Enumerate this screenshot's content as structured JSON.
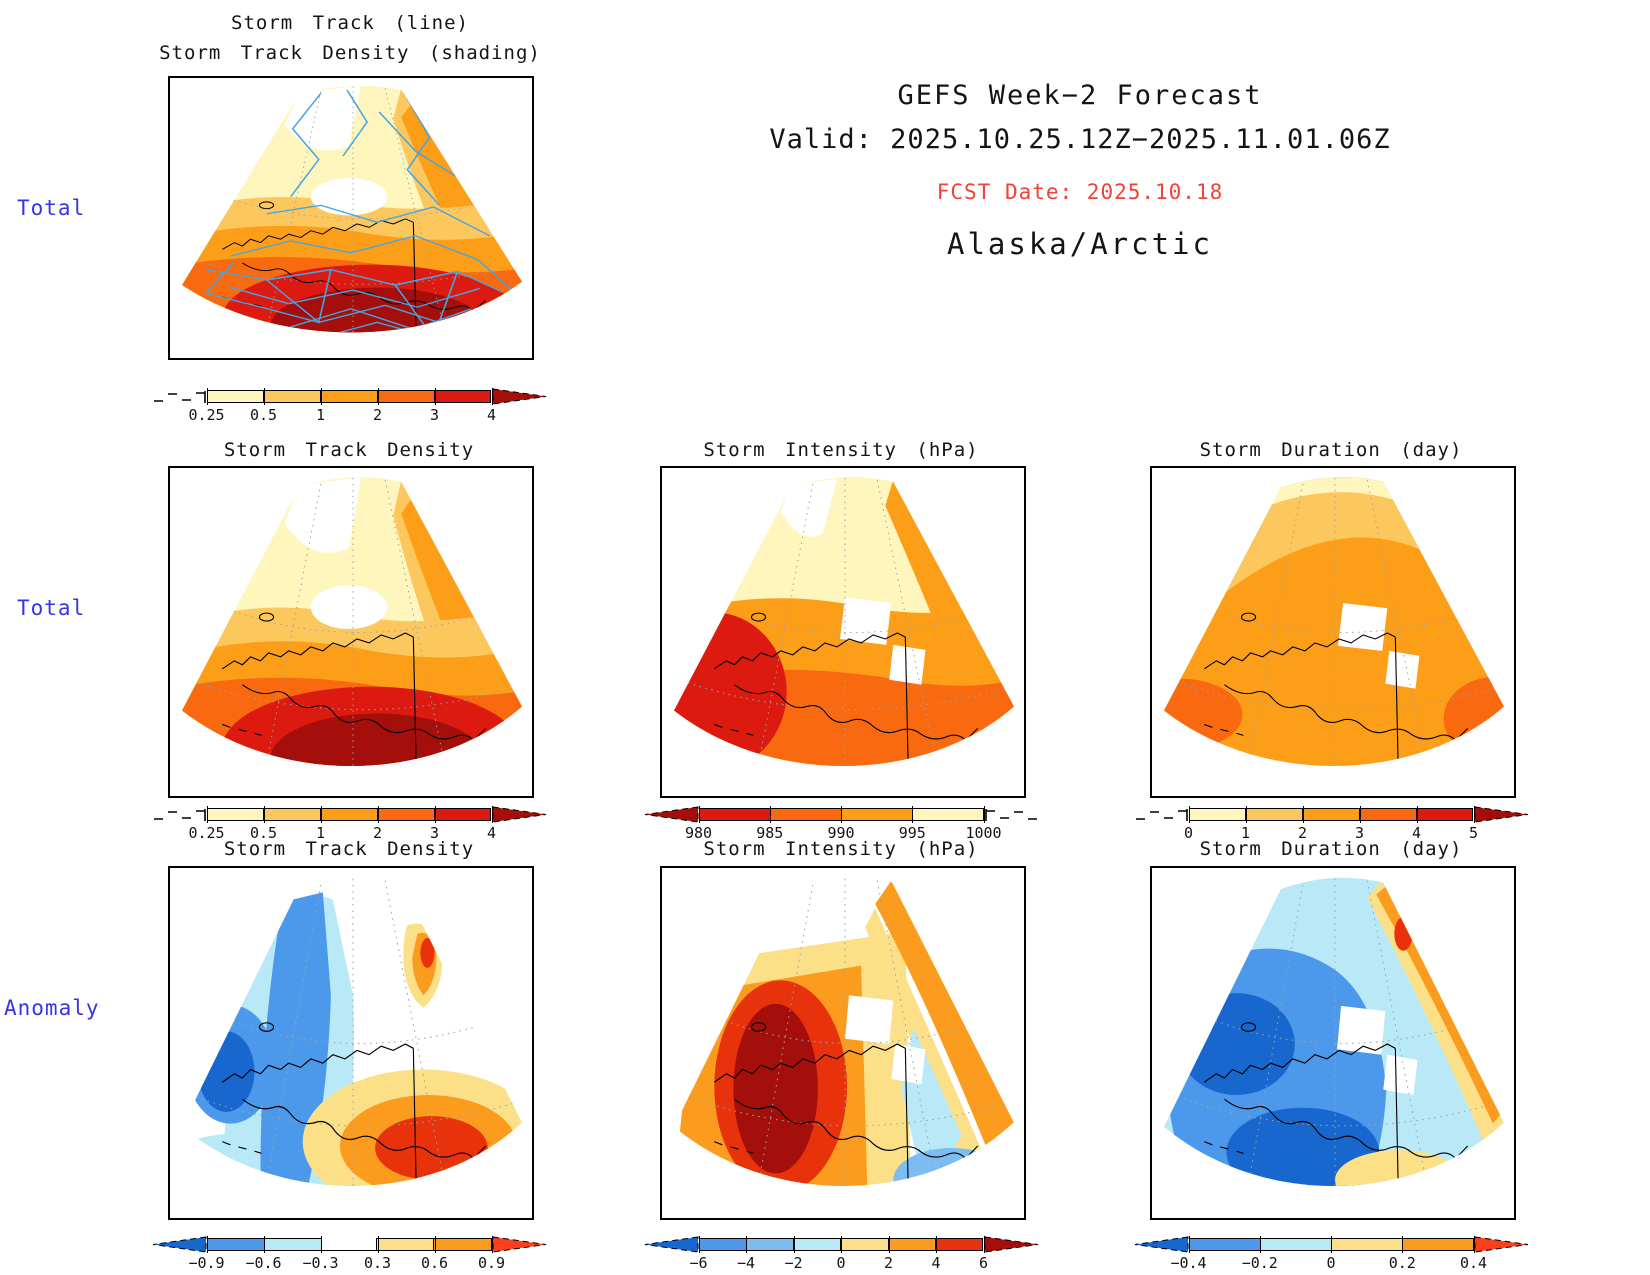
{
  "header": {
    "title": "GEFS Week−2 Forecast",
    "valid": "Valid: 2025.10.25.12Z−2025.11.01.06Z",
    "fcst_date": "FCST Date: 2025.10.18",
    "region": "Alaska/Arctic"
  },
  "rows": [
    {
      "label": "Total"
    },
    {
      "label": "Total"
    },
    {
      "label": "Anomaly"
    }
  ],
  "panels": {
    "p1": {
      "title1": "Storm Track (line)",
      "title2": "Storm Track Density (shading)"
    },
    "p2": {
      "title": "Storm Track Density"
    },
    "p3": {
      "title": "Storm Intensity (hPa)"
    },
    "p4": {
      "title": "Storm Duration (day)"
    },
    "p5": {
      "title": "Storm Track Density"
    },
    "p6": {
      "title": "Storm Intensity (hPa)"
    },
    "p7": {
      "title": "Storm Duration (day)"
    }
  },
  "colorbars": {
    "density_total": {
      "left": "dash",
      "left_color": "",
      "segments": [
        "#FFF6BE",
        "#FCC75C",
        "#FD9E18",
        "#F96A10",
        "#DD1A10"
      ],
      "right": "arrow",
      "right_color": "#A50F0B",
      "ticks": [
        "0.25",
        "0.5",
        "1",
        "2",
        "3",
        "4"
      ]
    },
    "intensity_total": {
      "left": "arrow",
      "left_color": "#A50F0B",
      "segments": [
        "#DD1A10",
        "#F96A10",
        "#FD9E18",
        "#FFF6BE"
      ],
      "right": "dash",
      "right_color": "",
      "ticks": [
        "980",
        "985",
        "990",
        "995",
        "1000"
      ]
    },
    "duration_total": {
      "left": "dash",
      "left_color": "",
      "segments": [
        "#FFF6BE",
        "#FCC75C",
        "#FD9E18",
        "#F96A10",
        "#DD1A10"
      ],
      "right": "arrow",
      "right_color": "#A50F0B",
      "ticks": [
        "0",
        "1",
        "2",
        "3",
        "4",
        "5"
      ]
    },
    "density_anom": {
      "left": "arrow",
      "left_color": "#1767CE",
      "segments": [
        "#4C99EC",
        "#B9E9F7",
        "#ffffff",
        "#FBE088",
        "#FB9C1F"
      ],
      "right": "arrow",
      "right_color": "#F8401C",
      "ticks": [
        "−0.9",
        "−0.6",
        "−0.3",
        "0.3",
        "0.6",
        "0.9"
      ]
    },
    "intensity_anom": {
      "left": "arrow",
      "left_color": "#1767CE",
      "segments": [
        "#4C99EC",
        "#7DBCF0",
        "#B9E9F7",
        "#FBE088",
        "#FB9C1F",
        "#E8320C"
      ],
      "right": "arrow",
      "right_color": "#A50F0B",
      "ticks": [
        "−6",
        "−4",
        "−2",
        "0",
        "2",
        "4",
        "6"
      ]
    },
    "duration_anom": {
      "left": "arrow",
      "left_color": "#1767CE",
      "segments": [
        "#4C99EC",
        "#B9E9F7",
        "#FBE088",
        "#FB9C1F"
      ],
      "right": "arrow",
      "right_color": "#F8401C",
      "ticks": [
        "−0.4",
        "−0.2",
        "0",
        "0.2",
        "0.4"
      ]
    }
  },
  "palette": {
    "warm": [
      "#FFF6BE",
      "#FCC75C",
      "#FD9E18",
      "#F96A10",
      "#DD1A10",
      "#A50F0B"
    ],
    "cool": [
      "#B9E9F7",
      "#7DBCF0",
      "#4C99EC",
      "#1767CE"
    ],
    "track_line": "#45A5E3",
    "row_label": "#3434E8",
    "fcst_date": "#F24136"
  },
  "chart_data": [
    {
      "type": "heatmap",
      "panel": "storm-track-total",
      "row": "Total",
      "title": "Storm Track (line) / Storm Track Density (shading)",
      "region": "Alaska/Arctic",
      "legend_levels": [
        0.25,
        0.5,
        1,
        2,
        3,
        4
      ],
      "legend_position": "below",
      "overlay": "GEFS ensemble member storm tracks drawn as blue line mesh",
      "summary": "Density exceeds 4 (dark red) over the Gulf of Alaska and southern coast; below 0.25 (white) over the central Arctic; dense blue track mesh over the North Pacific."
    },
    {
      "type": "heatmap",
      "panel": "storm-track-density-total",
      "row": "Total",
      "title": "Storm Track Density",
      "region": "Alaska/Arctic",
      "legend_levels": [
        0.25,
        0.5,
        1,
        2,
        3,
        4
      ],
      "legend_position": "below",
      "summary": "Maximum density >4 centered on the Gulf of Alaska, decreasing northward to <0.25 near the pole."
    },
    {
      "type": "heatmap",
      "panel": "storm-intensity-total",
      "row": "Total",
      "title": "Storm Intensity (hPa)",
      "region": "Alaska/Arctic",
      "units": "hPa",
      "legend_levels": [
        980,
        985,
        990,
        995,
        1000
      ],
      "legend_position": "below",
      "summary": "Deepest storms (<980 hPa, dark red) southwest over the Bering Sea; 995–1000 hPa (pale yellow) over the high Arctic."
    },
    {
      "type": "heatmap",
      "panel": "storm-duration-total",
      "row": "Total",
      "title": "Storm Duration (day)",
      "region": "Alaska/Arctic",
      "units": "day",
      "legend_levels": [
        0,
        1,
        2,
        3,
        4,
        5
      ],
      "legend_position": "below",
      "summary": "Fairly uniform 2–3 day durations (orange) across the domain, slightly shorter (1–2 days) near the top of the sector."
    },
    {
      "type": "heatmap",
      "panel": "storm-track-density-anomaly",
      "row": "Anomaly",
      "title": "Storm Track Density",
      "region": "Alaska/Arctic",
      "legend_levels": [
        -0.9,
        -0.6,
        -0.3,
        0.3,
        0.6,
        0.9
      ],
      "legend_position": "below",
      "summary": "Negative anomaly (blue, <−0.9) over the Chukchi/western Arctic; strong positive anomaly (>0.9, red) over the Gulf of Alaska and a small positive spot northeast."
    },
    {
      "type": "heatmap",
      "panel": "storm-intensity-anomaly",
      "row": "Anomaly",
      "title": "Storm Intensity (hPa)",
      "region": "Alaska/Arctic",
      "units": "hPa",
      "legend_levels": [
        -6,
        -4,
        -2,
        0,
        2,
        4,
        6
      ],
      "legend_position": "below",
      "summary": "Large positive anomaly (>6 hPa, dark red) centered over western/interior Alaska; weak negative anomalies (cyan/blue) along the eastern and southeastern edge."
    },
    {
      "type": "heatmap",
      "panel": "storm-duration-anomaly",
      "row": "Anomaly",
      "title": "Storm Duration (day)",
      "region": "Alaska/Arctic",
      "units": "day",
      "legend_levels": [
        -0.4,
        -0.2,
        0,
        0.2,
        0.4
      ],
      "legend_position": "below",
      "summary": "Mostly negative anomaly (blue, −0.2 to <−0.4) over Alaska and the Arctic; positive band (0.2–0.4, orange) along the northeastern boundary."
    }
  ]
}
